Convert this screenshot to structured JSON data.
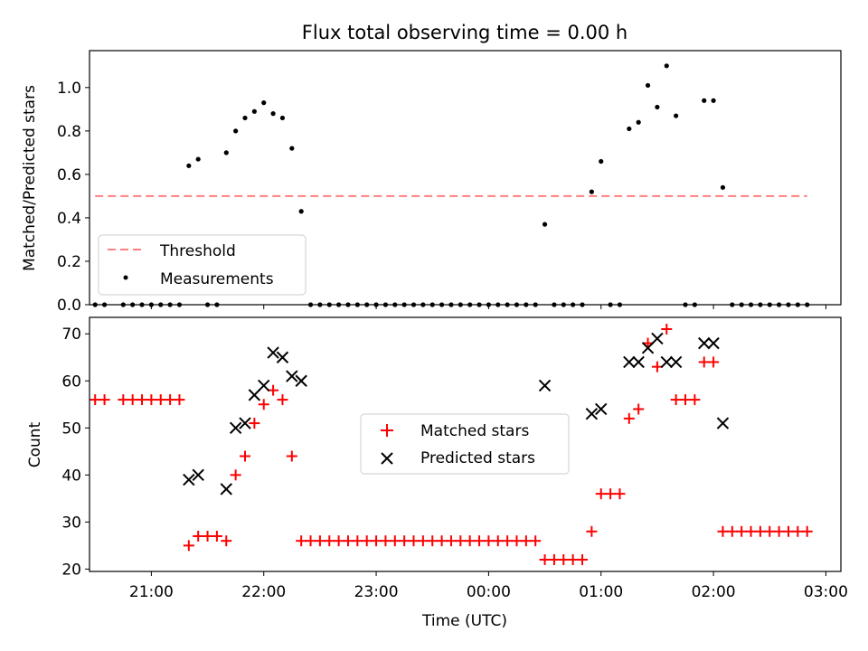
{
  "title": "Flux total observing time = 0.00 h",
  "xlabel": "Time (UTC)",
  "x_tick_labels": [
    "21:00",
    "22:00",
    "23:00",
    "00:00",
    "01:00",
    "02:00",
    "03:00"
  ],
  "top_y_tick_labels": [
    "0.0",
    "0.2",
    "0.4",
    "0.6",
    "0.8",
    "1.0"
  ],
  "bottom_y_tick_labels": [
    "20",
    "30",
    "40",
    "50",
    "60",
    "70"
  ],
  "chart_data": [
    {
      "type": "scatter",
      "ylabel": "Matched/Predicted stars",
      "ylim": [
        0,
        1.17
      ],
      "xlim": [
        "20:27",
        "03:08"
      ],
      "grid": false,
      "legend_position": "lower-left",
      "series": [
        {
          "name": "Threshold",
          "kind": "dashed-line",
          "color": "#ff7f7f",
          "points": [
            [
              "20:30",
              0.5
            ],
            [
              "02:50",
              0.5
            ]
          ]
        },
        {
          "name": "Measurements",
          "kind": "dots",
          "color": "#000000",
          "points": [
            [
              "20:30",
              0
            ],
            [
              "20:35",
              0
            ],
            [
              "20:45",
              0
            ],
            [
              "20:50",
              0
            ],
            [
              "20:55",
              0
            ],
            [
              "21:00",
              0
            ],
            [
              "21:05",
              0
            ],
            [
              "21:10",
              0
            ],
            [
              "21:15",
              0
            ],
            [
              "21:20",
              0.64
            ],
            [
              "21:25",
              0.67
            ],
            [
              "21:30",
              0
            ],
            [
              "21:35",
              0
            ],
            [
              "21:40",
              0.7
            ],
            [
              "21:45",
              0.8
            ],
            [
              "21:50",
              0.86
            ],
            [
              "21:55",
              0.89
            ],
            [
              "22:00",
              0.93
            ],
            [
              "22:05",
              0.88
            ],
            [
              "22:10",
              0.86
            ],
            [
              "22:15",
              0.72
            ],
            [
              "22:20",
              0.43
            ],
            [
              "22:25",
              0
            ],
            [
              "22:30",
              0
            ],
            [
              "22:35",
              0
            ],
            [
              "22:40",
              0
            ],
            [
              "22:45",
              0
            ],
            [
              "22:50",
              0
            ],
            [
              "22:55",
              0
            ],
            [
              "23:00",
              0
            ],
            [
              "23:05",
              0
            ],
            [
              "23:10",
              0
            ],
            [
              "23:15",
              0
            ],
            [
              "23:20",
              0
            ],
            [
              "23:25",
              0
            ],
            [
              "23:30",
              0
            ],
            [
              "23:35",
              0
            ],
            [
              "23:40",
              0
            ],
            [
              "23:45",
              0
            ],
            [
              "23:50",
              0
            ],
            [
              "23:55",
              0
            ],
            [
              "00:00",
              0
            ],
            [
              "00:05",
              0
            ],
            [
              "00:10",
              0
            ],
            [
              "00:15",
              0
            ],
            [
              "00:20",
              0
            ],
            [
              "00:25",
              0
            ],
            [
              "00:30",
              0.37
            ],
            [
              "00:35",
              0
            ],
            [
              "00:40",
              0
            ],
            [
              "00:45",
              0
            ],
            [
              "00:50",
              0
            ],
            [
              "00:55",
              0.52
            ],
            [
              "01:00",
              0.66
            ],
            [
              "01:05",
              0
            ],
            [
              "01:10",
              0
            ],
            [
              "01:15",
              0.81
            ],
            [
              "01:20",
              0.84
            ],
            [
              "01:25",
              1.01
            ],
            [
              "01:30",
              0.91
            ],
            [
              "01:35",
              1.1
            ],
            [
              "01:40",
              0.87
            ],
            [
              "01:45",
              0
            ],
            [
              "01:50",
              0
            ],
            [
              "01:55",
              0.94
            ],
            [
              "02:00",
              0.94
            ],
            [
              "02:05",
              0.54
            ],
            [
              "02:10",
              0
            ],
            [
              "02:15",
              0
            ],
            [
              "02:20",
              0
            ],
            [
              "02:25",
              0
            ],
            [
              "02:30",
              0
            ],
            [
              "02:35",
              0
            ],
            [
              "02:40",
              0
            ],
            [
              "02:45",
              0
            ],
            [
              "02:50",
              0
            ]
          ]
        }
      ]
    },
    {
      "type": "scatter",
      "ylabel": "Count",
      "ylim": [
        19.5,
        73.5
      ],
      "xlim": [
        "20:27",
        "03:08"
      ],
      "grid": false,
      "legend_position": "center",
      "series": [
        {
          "name": "Matched stars",
          "marker": "+",
          "color": "#ff0000",
          "points": [
            [
              "20:30",
              56
            ],
            [
              "20:35",
              56
            ],
            [
              "20:45",
              56
            ],
            [
              "20:50",
              56
            ],
            [
              "20:55",
              56
            ],
            [
              "21:00",
              56
            ],
            [
              "21:05",
              56
            ],
            [
              "21:10",
              56
            ],
            [
              "21:15",
              56
            ],
            [
              "21:20",
              25
            ],
            [
              "21:25",
              27
            ],
            [
              "21:30",
              27
            ],
            [
              "21:35",
              27
            ],
            [
              "21:40",
              26
            ],
            [
              "21:45",
              40
            ],
            [
              "21:50",
              44
            ],
            [
              "21:55",
              51
            ],
            [
              "22:00",
              55
            ],
            [
              "22:05",
              58
            ],
            [
              "22:10",
              56
            ],
            [
              "22:15",
              44
            ],
            [
              "22:20",
              26
            ],
            [
              "22:25",
              26
            ],
            [
              "22:30",
              26
            ],
            [
              "22:35",
              26
            ],
            [
              "22:40",
              26
            ],
            [
              "22:45",
              26
            ],
            [
              "22:50",
              26
            ],
            [
              "22:55",
              26
            ],
            [
              "23:00",
              26
            ],
            [
              "23:05",
              26
            ],
            [
              "23:10",
              26
            ],
            [
              "23:15",
              26
            ],
            [
              "23:20",
              26
            ],
            [
              "23:25",
              26
            ],
            [
              "23:30",
              26
            ],
            [
              "23:35",
              26
            ],
            [
              "23:40",
              26
            ],
            [
              "23:45",
              26
            ],
            [
              "23:50",
              26
            ],
            [
              "23:55",
              26
            ],
            [
              "00:00",
              26
            ],
            [
              "00:05",
              26
            ],
            [
              "00:10",
              26
            ],
            [
              "00:15",
              26
            ],
            [
              "00:20",
              26
            ],
            [
              "00:25",
              26
            ],
            [
              "00:30",
              22
            ],
            [
              "00:35",
              22
            ],
            [
              "00:40",
              22
            ],
            [
              "00:45",
              22
            ],
            [
              "00:50",
              22
            ],
            [
              "00:55",
              28
            ],
            [
              "01:00",
              36
            ],
            [
              "01:05",
              36
            ],
            [
              "01:10",
              36
            ],
            [
              "01:15",
              52
            ],
            [
              "01:20",
              54
            ],
            [
              "01:25",
              68
            ],
            [
              "01:30",
              63
            ],
            [
              "01:35",
              71
            ],
            [
              "01:40",
              56
            ],
            [
              "01:45",
              56
            ],
            [
              "01:50",
              56
            ],
            [
              "01:55",
              64
            ],
            [
              "02:00",
              64
            ],
            [
              "02:05",
              28
            ],
            [
              "02:10",
              28
            ],
            [
              "02:15",
              28
            ],
            [
              "02:20",
              28
            ],
            [
              "02:25",
              28
            ],
            [
              "02:30",
              28
            ],
            [
              "02:35",
              28
            ],
            [
              "02:40",
              28
            ],
            [
              "02:45",
              28
            ],
            [
              "02:50",
              28
            ]
          ]
        },
        {
          "name": "Predicted stars",
          "marker": "x",
          "color": "#000000",
          "points": [
            [
              "21:20",
              39
            ],
            [
              "21:25",
              40
            ],
            [
              "21:40",
              37
            ],
            [
              "21:45",
              50
            ],
            [
              "21:50",
              51
            ],
            [
              "21:55",
              57
            ],
            [
              "22:00",
              59
            ],
            [
              "22:05",
              66
            ],
            [
              "22:10",
              65
            ],
            [
              "22:15",
              61
            ],
            [
              "22:20",
              60
            ],
            [
              "00:30",
              59
            ],
            [
              "00:55",
              53
            ],
            [
              "01:00",
              54
            ],
            [
              "01:15",
              64
            ],
            [
              "01:20",
              64
            ],
            [
              "01:25",
              67
            ],
            [
              "01:30",
              69
            ],
            [
              "01:35",
              64
            ],
            [
              "01:40",
              64
            ],
            [
              "01:55",
              68
            ],
            [
              "02:00",
              68
            ],
            [
              "02:05",
              51
            ]
          ]
        }
      ]
    }
  ]
}
